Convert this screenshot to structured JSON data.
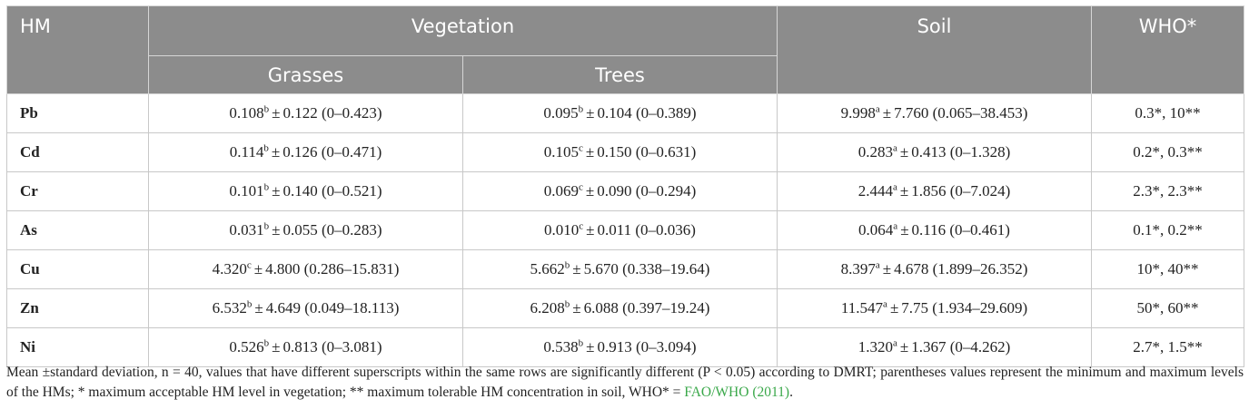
{
  "headers": {
    "hm": "HM",
    "vegetation": "Vegetation",
    "soil": "Soil",
    "who": "WHO*",
    "grasses": "Grasses",
    "trees": "Trees"
  },
  "pm_symbol": "±",
  "rows": [
    {
      "metal": "Pb",
      "grasses": {
        "mean": "0.108",
        "sup": "b",
        "rest": "0.122 (0–0.423)"
      },
      "trees": {
        "mean": "0.095",
        "sup": "b",
        "rest": "0.104 (0–0.389)"
      },
      "soil": {
        "mean": "9.998",
        "sup": "a",
        "rest": "7.760 (0.065–38.453)"
      },
      "who": "0.3*, 10**"
    },
    {
      "metal": "Cd",
      "grasses": {
        "mean": "0.114",
        "sup": "b",
        "rest": "0.126 (0–0.471)"
      },
      "trees": {
        "mean": "0.105",
        "sup": "c",
        "rest": "0.150 (0–0.631)"
      },
      "soil": {
        "mean": "0.283",
        "sup": "a",
        "rest": "0.413 (0–1.328)"
      },
      "who": "0.2*, 0.3**"
    },
    {
      "metal": "Cr",
      "grasses": {
        "mean": "0.101",
        "sup": "b",
        "rest": "0.140 (0–0.521)"
      },
      "trees": {
        "mean": "0.069",
        "sup": "c",
        "rest": "0.090 (0–0.294)"
      },
      "soil": {
        "mean": "2.444",
        "sup": "a",
        "rest": "1.856 (0–7.024)"
      },
      "who": "2.3*, 2.3**"
    },
    {
      "metal": "As",
      "grasses": {
        "mean": "0.031",
        "sup": "b",
        "rest": "0.055 (0–0.283)"
      },
      "trees": {
        "mean": "0.010",
        "sup": "c",
        "rest": "0.011 (0–0.036)"
      },
      "soil": {
        "mean": "0.064",
        "sup": "a",
        "rest": "0.116 (0–0.461)"
      },
      "who": "0.1*, 0.2**"
    },
    {
      "metal": "Cu",
      "grasses": {
        "mean": "4.320",
        "sup": "c",
        "rest": "4.800 (0.286–15.831)"
      },
      "trees": {
        "mean": "5.662",
        "sup": "b",
        "rest": "5.670 (0.338–19.64)"
      },
      "soil": {
        "mean": "8.397",
        "sup": "a",
        "rest": "4.678 (1.899–26.352)"
      },
      "who": "10*, 40**"
    },
    {
      "metal": "Zn",
      "grasses": {
        "mean": "6.532",
        "sup": "b",
        "rest": "4.649 (0.049–18.113)"
      },
      "trees": {
        "mean": "6.208",
        "sup": "b",
        "rest": "6.088 (0.397–19.24)"
      },
      "soil": {
        "mean": "11.547",
        "sup": "a",
        "rest": "7.75 (1.934–29.609)"
      },
      "who": "50*, 60**"
    },
    {
      "metal": "Ni",
      "grasses": {
        "mean": "0.526",
        "sup": "b",
        "rest": "0.813 (0–3.081)"
      },
      "trees": {
        "mean": "0.538",
        "sup": "b",
        "rest": "0.913 (0–3.094)"
      },
      "soil": {
        "mean": "1.320",
        "sup": "a",
        "rest": "1.367 (0–4.262)"
      },
      "who": "2.7*, 1.5**"
    }
  ],
  "footnote": {
    "text": "Mean ±standard deviation, n = 40, values that have different superscripts within the same rows are significantly different (P < 0.05) according to DMRT; parentheses values represent the minimum and maximum levels of the HMs; * maximum acceptable HM level in vegetation; ** maximum tolerable HM concentration in soil, WHO* = ",
    "link": "FAO/WHO (2011)",
    "end": "."
  },
  "colors": {
    "header_bg": "#8c8c8c",
    "header_text": "#ffffff",
    "link": "#3aa84a"
  }
}
